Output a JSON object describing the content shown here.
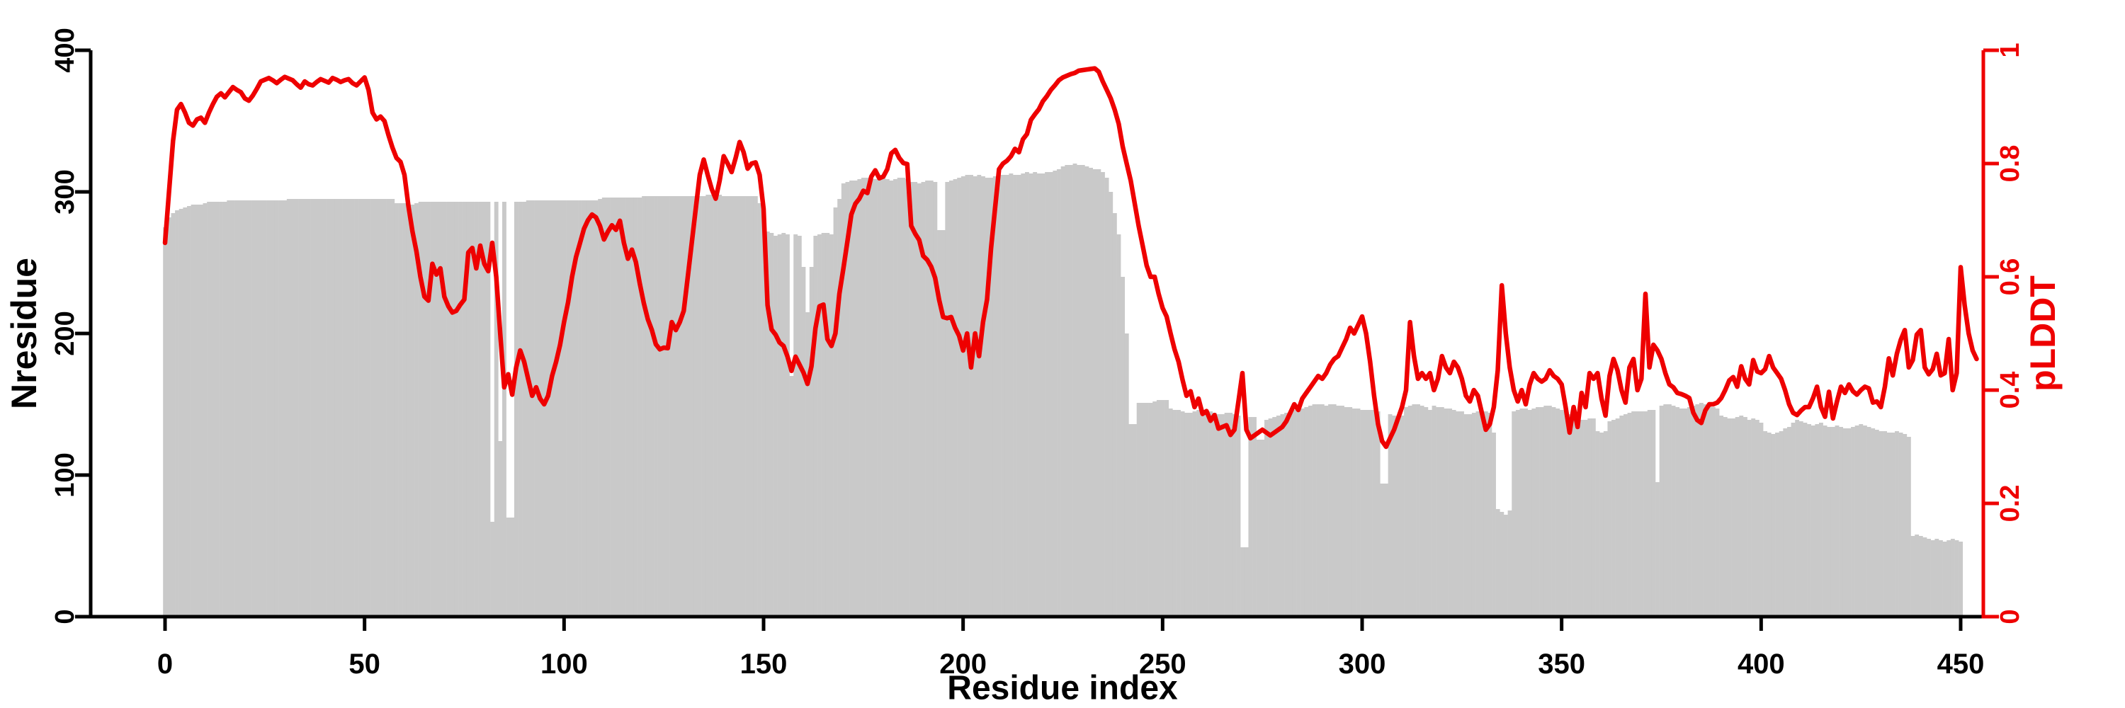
{
  "chart_data": {
    "type": "combo",
    "title": "",
    "xlabel": "Residue index",
    "ylabel_left": "Nresidue",
    "ylabel_right": "pLDDT",
    "x_axis": {
      "range": [
        0,
        450
      ],
      "ticks": [
        0,
        50,
        100,
        150,
        200,
        250,
        300,
        350,
        400,
        450
      ]
    },
    "y_left_axis": {
      "range": [
        0,
        400
      ],
      "ticks": [
        0,
        100,
        200,
        300,
        400
      ],
      "color": "#000000"
    },
    "y_right_axis": {
      "range": [
        0,
        1
      ],
      "ticks": [
        0,
        0.2,
        0.4,
        0.6,
        0.8,
        1
      ],
      "tick_labels": [
        "0",
        "0.2",
        "0.4",
        "0.6",
        "0.8",
        "1"
      ],
      "color": "#ee0000"
    },
    "grid": false,
    "legend": "none",
    "series": [
      {
        "name": "Nresidue",
        "type": "bar",
        "color": "#c9c9c9",
        "x_start": 0,
        "x_step": 1,
        "values": [
          275,
          282,
          285,
          287,
          288,
          289,
          290,
          291,
          291,
          291,
          292,
          293,
          293,
          293,
          293,
          293,
          294,
          294,
          294,
          294,
          294,
          294,
          294,
          294,
          294,
          294,
          294,
          294,
          294,
          294,
          294,
          295,
          295,
          295,
          295,
          295,
          295,
          295,
          295,
          295,
          295,
          295,
          295,
          295,
          295,
          295,
          295,
          295,
          295,
          295,
          295,
          295,
          295,
          295,
          295,
          295,
          295,
          295,
          292,
          292,
          292,
          291,
          291,
          292,
          293,
          293,
          293,
          293,
          293,
          293,
          293,
          293,
          293,
          293,
          293,
          293,
          293,
          293,
          293,
          293,
          293,
          293,
          67,
          293,
          124,
          293,
          70,
          70,
          293,
          293,
          293,
          294,
          294,
          294,
          294,
          294,
          294,
          294,
          294,
          294,
          294,
          294,
          294,
          294,
          294,
          294,
          294,
          294,
          294,
          295,
          296,
          296,
          296,
          296,
          296,
          296,
          296,
          296,
          296,
          296,
          297,
          297,
          297,
          297,
          297,
          297,
          297,
          297,
          297,
          297,
          297,
          297,
          297,
          297,
          297,
          297,
          298,
          298,
          298,
          298,
          297,
          297,
          297,
          297,
          297,
          297,
          297,
          297,
          297,
          292,
          285,
          272,
          271,
          269,
          270,
          271,
          270,
          170,
          270,
          269,
          247,
          215,
          247,
          269,
          270,
          271,
          271,
          270,
          289,
          295,
          306,
          307,
          308,
          308,
          309,
          310,
          310,
          309,
          309,
          310,
          310,
          309,
          308,
          309,
          310,
          310,
          309,
          307,
          307,
          306,
          307,
          308,
          308,
          307,
          273,
          273,
          307,
          308,
          309,
          310,
          311,
          312,
          312,
          311,
          312,
          311,
          310,
          310,
          311,
          312,
          312,
          312,
          313,
          312,
          312,
          313,
          314,
          313,
          314,
          313,
          313,
          314,
          314,
          315,
          316,
          318,
          319,
          319,
          320,
          319,
          319,
          318,
          317,
          316,
          316,
          314,
          310,
          300,
          285,
          270,
          240,
          200,
          136,
          136,
          151,
          151,
          151,
          151,
          152,
          153,
          153,
          153,
          147,
          146,
          146,
          145,
          144,
          144,
          145,
          146,
          145,
          145,
          145,
          144,
          143,
          143,
          144,
          144,
          143,
          142,
          49,
          49,
          141,
          141,
          125,
          125,
          139,
          140,
          141,
          142,
          143,
          144,
          145,
          146,
          147,
          147,
          148,
          149,
          150,
          150,
          150,
          149,
          150,
          150,
          149,
          149,
          148,
          148,
          147,
          147,
          146,
          146,
          146,
          146,
          145,
          94,
          94,
          143,
          142,
          141,
          142,
          148,
          149,
          150,
          150,
          149,
          148,
          146,
          149,
          148,
          148,
          147,
          147,
          146,
          145,
          145,
          143,
          143,
          144,
          145,
          145,
          145,
          144,
          130,
          76,
          74,
          72,
          75,
          145,
          146,
          147,
          147,
          146,
          147,
          148,
          148,
          149,
          149,
          148,
          147,
          146,
          145,
          143,
          141,
          140,
          139,
          139,
          140,
          140,
          131,
          130,
          131,
          138,
          139,
          140,
          142,
          143,
          144,
          145,
          145,
          145,
          145,
          146,
          146,
          95,
          149,
          150,
          150,
          149,
          148,
          147,
          147,
          148,
          149,
          150,
          151,
          150,
          149,
          148,
          147,
          142,
          141,
          140,
          140,
          141,
          142,
          141,
          139,
          140,
          139,
          137,
          131,
          130,
          129,
          130,
          131,
          133,
          134,
          137,
          139,
          138,
          137,
          136,
          135,
          136,
          137,
          135,
          134,
          134,
          135,
          134,
          133,
          133,
          134,
          135,
          136,
          135,
          134,
          133,
          132,
          131,
          131,
          130,
          130,
          131,
          130,
          129,
          127,
          57,
          58,
          57,
          56,
          55,
          54,
          55,
          54,
          53,
          54,
          55,
          54,
          53
        ]
      },
      {
        "name": "pLDDT",
        "type": "line",
        "color": "#ee0000",
        "x_start": 0,
        "x_step": 1,
        "values": [
          0.66,
          0.75,
          0.84,
          0.895,
          0.905,
          0.89,
          0.872,
          0.867,
          0.878,
          0.881,
          0.872,
          0.89,
          0.905,
          0.918,
          0.924,
          0.917,
          0.926,
          0.935,
          0.93,
          0.926,
          0.915,
          0.911,
          0.92,
          0.932,
          0.945,
          0.948,
          0.951,
          0.947,
          0.942,
          0.948,
          0.953,
          0.95,
          0.947,
          0.94,
          0.934,
          0.945,
          0.94,
          0.938,
          0.944,
          0.949,
          0.946,
          0.943,
          0.951,
          0.948,
          0.944,
          0.947,
          0.949,
          0.942,
          0.938,
          0.945,
          0.952,
          0.93,
          0.89,
          0.878,
          0.883,
          0.875,
          0.85,
          0.828,
          0.81,
          0.803,
          0.78,
          0.725,
          0.68,
          0.645,
          0.6,
          0.565,
          0.558,
          0.623,
          0.604,
          0.615,
          0.565,
          0.548,
          0.537,
          0.54,
          0.551,
          0.56,
          0.643,
          0.651,
          0.615,
          0.655,
          0.623,
          0.61,
          0.66,
          0.6,
          0.5,
          0.405,
          0.428,
          0.392,
          0.44,
          0.47,
          0.45,
          0.42,
          0.39,
          0.405,
          0.385,
          0.375,
          0.39,
          0.425,
          0.45,
          0.48,
          0.52,
          0.555,
          0.6,
          0.635,
          0.66,
          0.685,
          0.7,
          0.71,
          0.705,
          0.69,
          0.666,
          0.68,
          0.691,
          0.683,
          0.699,
          0.66,
          0.632,
          0.648,
          0.626,
          0.587,
          0.553,
          0.525,
          0.506,
          0.481,
          0.472,
          0.475,
          0.474,
          0.52,
          0.506,
          0.52,
          0.54,
          0.6,
          0.66,
          0.72,
          0.78,
          0.807,
          0.78,
          0.755,
          0.738,
          0.77,
          0.813,
          0.8,
          0.785,
          0.81,
          0.838,
          0.82,
          0.791,
          0.8,
          0.802,
          0.78,
          0.72,
          0.55,
          0.507,
          0.498,
          0.484,
          0.478,
          0.459,
          0.434,
          0.459,
          0.445,
          0.431,
          0.411,
          0.442,
          0.509,
          0.548,
          0.551,
          0.49,
          0.478,
          0.5,
          0.57,
          0.615,
          0.662,
          0.71,
          0.729,
          0.738,
          0.752,
          0.748,
          0.777,
          0.788,
          0.774,
          0.777,
          0.79,
          0.818,
          0.824,
          0.81,
          0.801,
          0.799,
          0.69,
          0.676,
          0.665,
          0.637,
          0.63,
          0.618,
          0.598,
          0.559,
          0.529,
          0.527,
          0.529,
          0.51,
          0.496,
          0.47,
          0.5,
          0.44,
          0.5,
          0.46,
          0.52,
          0.56,
          0.65,
          0.72,
          0.79,
          0.8,
          0.805,
          0.813,
          0.826,
          0.82,
          0.843,
          0.852,
          0.877,
          0.887,
          0.896,
          0.91,
          0.919,
          0.93,
          0.938,
          0.947,
          0.952,
          0.955,
          0.958,
          0.96,
          0.964,
          0.965,
          0.966,
          0.967,
          0.968,
          0.962,
          0.945,
          0.93,
          0.915,
          0.895,
          0.87,
          0.83,
          0.8,
          0.77,
          0.73,
          0.69,
          0.655,
          0.62,
          0.6,
          0.6,
          0.57,
          0.545,
          0.53,
          0.5,
          0.472,
          0.45,
          0.418,
          0.39,
          0.398,
          0.37,
          0.385,
          0.358,
          0.363,
          0.346,
          0.356,
          0.332,
          0.335,
          0.338,
          0.321,
          0.33,
          0.38,
          0.43,
          0.33,
          0.315,
          0.32,
          0.325,
          0.33,
          0.325,
          0.32,
          0.325,
          0.33,
          0.335,
          0.345,
          0.36,
          0.375,
          0.365,
          0.385,
          0.395,
          0.405,
          0.415,
          0.425,
          0.42,
          0.43,
          0.445,
          0.455,
          0.46,
          0.475,
          0.49,
          0.51,
          0.5,
          0.515,
          0.53,
          0.5,
          0.45,
          0.39,
          0.34,
          0.31,
          0.3,
          0.315,
          0.33,
          0.35,
          0.37,
          0.4,
          0.52,
          0.46,
          0.42,
          0.43,
          0.42,
          0.43,
          0.4,
          0.42,
          0.46,
          0.44,
          0.43,
          0.45,
          0.44,
          0.42,
          0.39,
          0.38,
          0.4,
          0.39,
          0.36,
          0.33,
          0.34,
          0.37,
          0.435,
          0.585,
          0.5,
          0.44,
          0.4,
          0.38,
          0.4,
          0.375,
          0.41,
          0.43,
          0.42,
          0.415,
          0.42,
          0.435,
          0.425,
          0.42,
          0.41,
          0.37,
          0.325,
          0.37,
          0.335,
          0.395,
          0.37,
          0.43,
          0.42,
          0.43,
          0.385,
          0.355,
          0.425,
          0.455,
          0.435,
          0.4,
          0.378,
          0.44,
          0.455,
          0.4,
          0.42,
          0.57,
          0.44,
          0.48,
          0.47,
          0.455,
          0.43,
          0.41,
          0.405,
          0.395,
          0.393,
          0.39,
          0.386,
          0.36,
          0.347,
          0.342,
          0.364,
          0.375,
          0.375,
          0.378,
          0.386,
          0.4,
          0.417,
          0.423,
          0.406,
          0.442,
          0.42,
          0.41,
          0.453,
          0.433,
          0.43,
          0.437,
          0.46,
          0.44,
          0.43,
          0.42,
          0.4,
          0.375,
          0.36,
          0.356,
          0.364,
          0.37,
          0.37,
          0.386,
          0.406,
          0.37,
          0.353,
          0.397,
          0.35,
          0.38,
          0.406,
          0.395,
          0.41,
          0.398,
          0.392,
          0.4,
          0.406,
          0.403,
          0.378,
          0.38,
          0.37,
          0.406,
          0.456,
          0.426,
          0.464,
          0.489,
          0.506,
          0.44,
          0.453,
          0.498,
          0.506,
          0.44,
          0.428,
          0.437,
          0.464,
          0.426,
          0.43,
          0.49,
          0.4,
          0.43,
          0.617,
          0.55,
          0.5,
          0.47,
          0.455
        ]
      }
    ]
  }
}
